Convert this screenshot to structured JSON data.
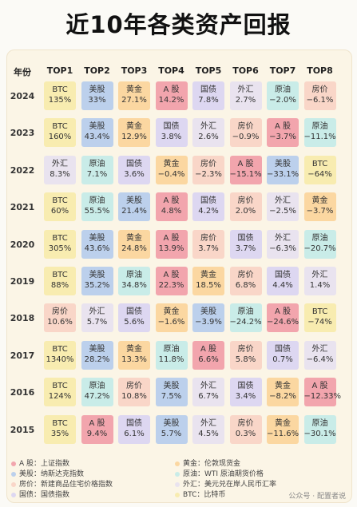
{
  "title": "近10年各类资产回报",
  "year_header": "年份",
  "column_headers": [
    "TOP1",
    "TOP2",
    "TOP3",
    "TOP4",
    "TOP5",
    "TOP6",
    "TOP7",
    "TOP8"
  ],
  "colors": {
    "BTC": "#f8ecb0",
    "美股": "#bcd0ec",
    "黄金": "#fbd7a1",
    "A股": "#f2a5ad",
    "国债": "#ddd7f1",
    "外汇": "#e9e3ef",
    "原油": "#c9ece8",
    "房价": "#f9d6c8"
  },
  "chart_data": {
    "type": "table",
    "years": [
      "2024",
      "2023",
      "2022",
      "2021",
      "2020",
      "2019",
      "2018",
      "2017",
      "2016",
      "2015"
    ],
    "rows": [
      [
        {
          "a": "BTC",
          "v": "135%"
        },
        {
          "a": "美股",
          "v": "33%"
        },
        {
          "a": "黄金",
          "v": "27.1%"
        },
        {
          "a": "A 股",
          "v": "14.2%"
        },
        {
          "a": "国债",
          "v": "7.8%"
        },
        {
          "a": "外汇",
          "v": "2.7%"
        },
        {
          "a": "原油",
          "v": "−2.0%"
        },
        {
          "a": "房价",
          "v": "−6.1%"
        }
      ],
      [
        {
          "a": "BTC",
          "v": "160%"
        },
        {
          "a": "美股",
          "v": "43.4%"
        },
        {
          "a": "黄金",
          "v": "12.9%"
        },
        {
          "a": "国债",
          "v": "3.8%"
        },
        {
          "a": "外汇",
          "v": "2.6%"
        },
        {
          "a": "房价",
          "v": "−0.9%"
        },
        {
          "a": "A 股",
          "v": "−3.7%"
        },
        {
          "a": "原油",
          "v": "−11.1%"
        }
      ],
      [
        {
          "a": "外汇",
          "v": "8.3%"
        },
        {
          "a": "原油",
          "v": "7.1%"
        },
        {
          "a": "国债",
          "v": "3.6%"
        },
        {
          "a": "黄金",
          "v": "−0.4%"
        },
        {
          "a": "房价",
          "v": "−2.3%"
        },
        {
          "a": "A 股",
          "v": "−15.1%"
        },
        {
          "a": "美股",
          "v": "−33.1%"
        },
        {
          "a": "BTC",
          "v": "−64%"
        }
      ],
      [
        {
          "a": "BTC",
          "v": "60%"
        },
        {
          "a": "原油",
          "v": "55.5%"
        },
        {
          "a": "美股",
          "v": "21.4%"
        },
        {
          "a": "A 股",
          "v": "4.8%"
        },
        {
          "a": "国债",
          "v": "4.2%"
        },
        {
          "a": "房价",
          "v": "2.0%"
        },
        {
          "a": "外汇",
          "v": "−2.5%"
        },
        {
          "a": "黄金",
          "v": "−3.7%"
        }
      ],
      [
        {
          "a": "BTC",
          "v": "305%"
        },
        {
          "a": "美股",
          "v": "43.6%"
        },
        {
          "a": "黄金",
          "v": "24.8%"
        },
        {
          "a": "A 股",
          "v": "13.9%"
        },
        {
          "a": "房价",
          "v": "3.7%"
        },
        {
          "a": "国债",
          "v": "3.7%"
        },
        {
          "a": "外汇",
          "v": "−6.3%"
        },
        {
          "a": "原油",
          "v": "−20.7%"
        }
      ],
      [
        {
          "a": "BTC",
          "v": "88%"
        },
        {
          "a": "美股",
          "v": "35.2%"
        },
        {
          "a": "原油",
          "v": "34.8%"
        },
        {
          "a": "A 股",
          "v": "22.3%"
        },
        {
          "a": "黄金",
          "v": "18.5%"
        },
        {
          "a": "房价",
          "v": "6.8%"
        },
        {
          "a": "国债",
          "v": "4.4%"
        },
        {
          "a": "外汇",
          "v": "1.4%"
        }
      ],
      [
        {
          "a": "房价",
          "v": "10.6%"
        },
        {
          "a": "外汇",
          "v": "5.7%"
        },
        {
          "a": "国债",
          "v": "5.6%"
        },
        {
          "a": "黄金",
          "v": "−1.6%"
        },
        {
          "a": "美股",
          "v": "−3.9%"
        },
        {
          "a": "原油",
          "v": "−24.2%"
        },
        {
          "a": "A 股",
          "v": "−24.6%"
        },
        {
          "a": "BTC",
          "v": "−74%"
        }
      ],
      [
        {
          "a": "BTC",
          "v": "1340%"
        },
        {
          "a": "美股",
          "v": "28.2%"
        },
        {
          "a": "黄金",
          "v": "13.3%"
        },
        {
          "a": "原油",
          "v": "11.8%"
        },
        {
          "a": "A 股",
          "v": "6.6%"
        },
        {
          "a": "房价",
          "v": "5.8%"
        },
        {
          "a": "国债",
          "v": "0.7%"
        },
        {
          "a": "外汇",
          "v": "−6.4%"
        }
      ],
      [
        {
          "a": "BTC",
          "v": "124%"
        },
        {
          "a": "原油",
          "v": "47.2%"
        },
        {
          "a": "房价",
          "v": "10.8%"
        },
        {
          "a": "美股",
          "v": "7.5%"
        },
        {
          "a": "外汇",
          "v": "6.7%"
        },
        {
          "a": "国债",
          "v": "3.4%"
        },
        {
          "a": "黄金",
          "v": "−8.2%"
        },
        {
          "a": "A 股",
          "v": "−12.33%"
        }
      ],
      [
        {
          "a": "BTC",
          "v": "35%"
        },
        {
          "a": "A 股",
          "v": "9.4%"
        },
        {
          "a": "国债",
          "v": "6.1%"
        },
        {
          "a": "美股",
          "v": "5.7%"
        },
        {
          "a": "外汇",
          "v": "4.5%"
        },
        {
          "a": "房价",
          "v": "0.3%"
        },
        {
          "a": "黄金",
          "v": "−11.6%"
        },
        {
          "a": "原油",
          "v": "−30.1%"
        }
      ]
    ]
  },
  "legend": [
    {
      "key": "A股",
      "text": "A 股：上证指数"
    },
    {
      "key": "黄金",
      "text": "黄金：伦敦现货金"
    },
    {
      "key": "美股",
      "text": "美股：纳斯达克指数"
    },
    {
      "key": "原油",
      "text": "原油：WTI 原油期货价格"
    },
    {
      "key": "房价",
      "text": "房价：新建商品住宅价格指数"
    },
    {
      "key": "外汇",
      "text": "外汇：美元兑在岸人民币汇率"
    },
    {
      "key": "国债",
      "text": "国债：国债指数"
    },
    {
      "key": "BTC",
      "text": "BTC：比特币"
    }
  ],
  "footer": "公众号 · 配置者说"
}
